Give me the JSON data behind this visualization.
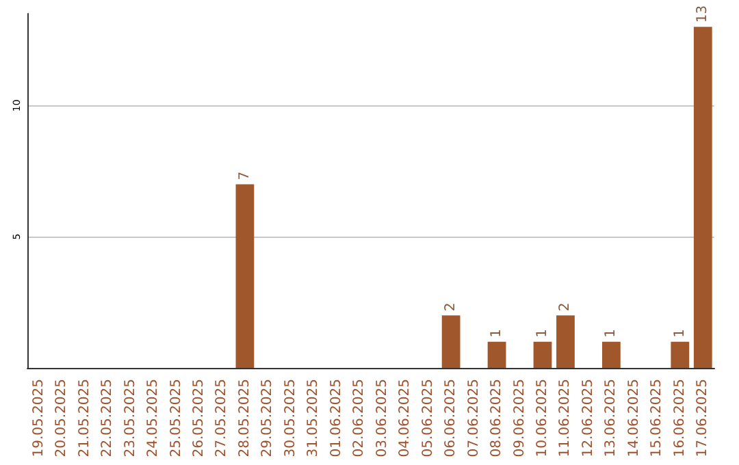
{
  "chart_data": {
    "type": "bar",
    "categories": [
      "19.05.2025",
      "20.05.2025",
      "21.05.2025",
      "22.05.2025",
      "23.05.2025",
      "24.05.2025",
      "25.05.2025",
      "26.05.2025",
      "27.05.2025",
      "28.05.2025",
      "29.05.2025",
      "30.05.2025",
      "31.05.2025",
      "01.06.2025",
      "02.06.2025",
      "03.06.2025",
      "04.06.2025",
      "05.06.2025",
      "06.06.2025",
      "07.06.2025",
      "08.06.2025",
      "09.06.2025",
      "10.06.2025",
      "11.06.2025",
      "12.06.2025",
      "13.06.2025",
      "14.06.2025",
      "15.06.2025",
      "16.06.2025",
      "17.06.2025"
    ],
    "values": [
      0,
      0,
      0,
      0,
      0,
      0,
      0,
      0,
      0,
      7,
      0,
      0,
      0,
      0,
      0,
      0,
      0,
      0,
      2,
      0,
      1,
      0,
      1,
      2,
      0,
      1,
      0,
      0,
      1,
      13
    ],
    "value_labels": [
      null,
      null,
      null,
      null,
      null,
      null,
      null,
      null,
      null,
      "7",
      null,
      null,
      null,
      null,
      null,
      null,
      null,
      null,
      "2",
      null,
      "1",
      null,
      "1",
      "2",
      null,
      "1",
      null,
      null,
      "1",
      "13"
    ],
    "color": "#a0572b",
    "ylim": [
      0,
      13.5
    ],
    "yticks": [
      5,
      10
    ],
    "grid": "y"
  }
}
